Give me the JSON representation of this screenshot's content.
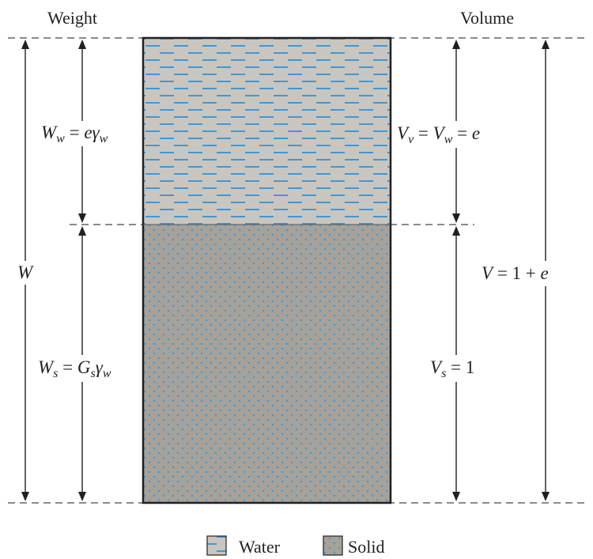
{
  "headers": {
    "weight": "Weight",
    "volume": "Volume"
  },
  "labels": {
    "w_total": {
      "var": "W"
    },
    "w_water": {
      "base": "W",
      "sub": "w",
      "eq": " = ",
      "coef": "e",
      "gamma": "γ",
      "gamma_sub": "w"
    },
    "w_solid": {
      "base": "W",
      "sub": "s",
      "eq": " = ",
      "coef": "G",
      "coef_sub": "s",
      "gamma": "γ",
      "gamma_sub": "w"
    },
    "v_void": {
      "base1": "V",
      "sub1": "v",
      "eq1": " = ",
      "base2": "V",
      "sub2": "w",
      "eq2": " = ",
      "rhs": "e"
    },
    "v_solid": {
      "base": "V",
      "sub": "s",
      "eq": " = ",
      "rhs": "1"
    },
    "v_total": {
      "base": "V",
      "eq": " = ",
      "one": "1",
      "plus": " + ",
      "e": "e"
    }
  },
  "legend": {
    "water": "Water",
    "solid": "Solid"
  },
  "colors": {
    "water_fill": "#c9c6c0",
    "water_dash": "#3f98d6",
    "solid_fill": "#a6a29a",
    "solid_dot": "#3f98d6",
    "outline": "#231f20"
  }
}
